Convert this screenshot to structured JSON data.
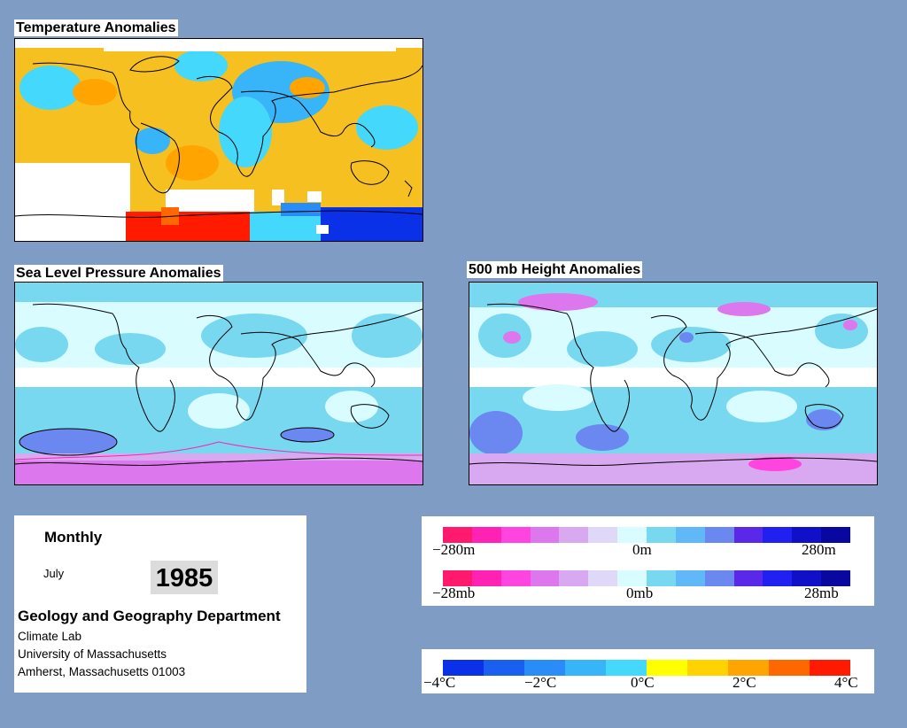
{
  "titles": {
    "temperature": "Temperature Anomalies",
    "slp": "Sea Level Pressure Anomalies",
    "height": "500 mb Height Anomalies"
  },
  "info": {
    "period": "Monthly",
    "month": "July",
    "year": "1985",
    "department": "Geology and Geography Department",
    "lab": "Climate Lab",
    "university": "University of Massachusetts",
    "address": "Amherst, Massachusetts 01003"
  },
  "legends": {
    "height": {
      "min": "−280m",
      "mid": "0m",
      "max": "280m"
    },
    "pressure": {
      "min": "−28mb",
      "mid": "0mb",
      "max": "28mb"
    },
    "temperature": {
      "t1": "−4°C",
      "t2": "−2°C",
      "t3": "0°C",
      "t4": "2°C",
      "t5": "4°C"
    }
  },
  "colors": {
    "background": "#7f9cc4",
    "anomaly_scale": [
      "#ff1a6e",
      "#ff22b4",
      "#ff44e0",
      "#dd77ee",
      "#d8a8f0",
      "#e0d8f8",
      "#d8fcff",
      "#78d8f0",
      "#60b8f8",
      "#6a88f0",
      "#5a28e8",
      "#2020f0",
      "#1010c8",
      "#0808a0"
    ],
    "temperature_scale": [
      "#0a30e8",
      "#1a60f0",
      "#2a8cf6",
      "#38b4f8",
      "#44d8fc",
      "#ffff00",
      "#ffd200",
      "#ffa400",
      "#ff6800",
      "#ff1a00"
    ]
  }
}
